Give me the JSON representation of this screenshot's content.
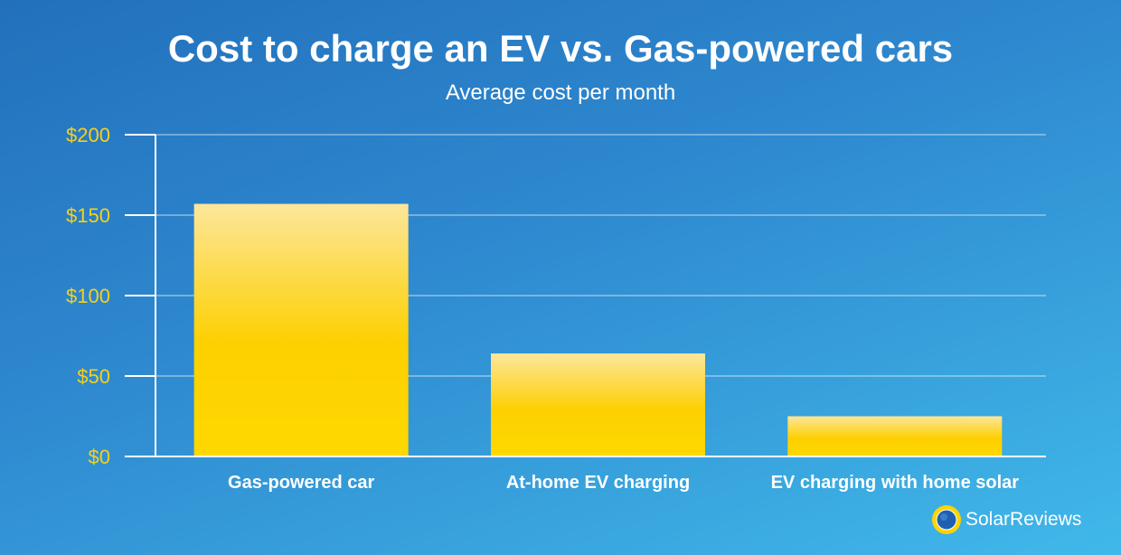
{
  "chart_data": {
    "type": "bar",
    "title": "Cost to charge an EV vs. Gas-powered cars",
    "subtitle": "Average cost per month",
    "categories": [
      "Gas-powered car",
      "At-home EV charging",
      "EV charging with home solar"
    ],
    "values": [
      157,
      64,
      25
    ],
    "ylim": [
      0,
      200
    ],
    "yticks": [
      0,
      50,
      100,
      150,
      200
    ],
    "ytick_labels": [
      "$0",
      "$50",
      "$100",
      "$150",
      "$200"
    ],
    "xlabel": "",
    "ylabel": "",
    "grid": true,
    "colors": {
      "bar_top": "#fde69b",
      "bar_bottom": "#fdd400",
      "tick_label": "#f5d01e"
    }
  },
  "brand": {
    "name": "SolarReviews"
  }
}
